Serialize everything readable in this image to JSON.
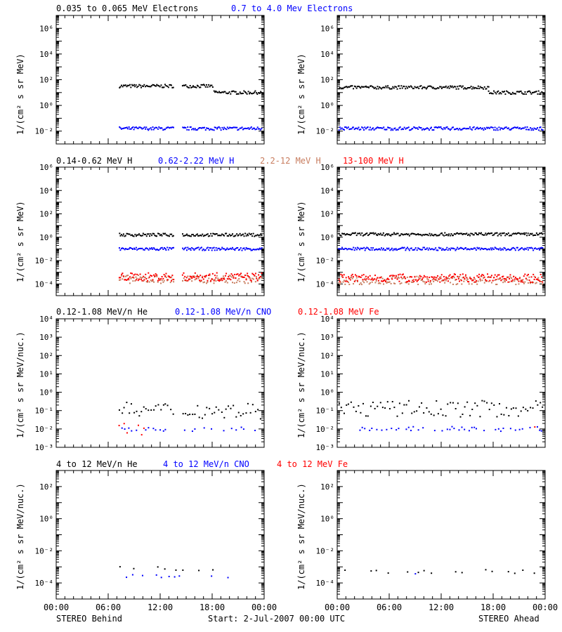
{
  "colors": {
    "black": "#000000",
    "blue": "#0000ff",
    "salmon": "#c87d5f",
    "red": "#ff0000"
  },
  "time_axis": {
    "range_hours": [
      0,
      24
    ],
    "ticks": [
      0,
      6,
      12,
      18,
      24
    ],
    "tick_labels": [
      "00:00",
      "06:00",
      "12:00",
      "18:00",
      "00:00"
    ]
  },
  "rows": [
    {
      "legend": [
        {
          "text": "0.035 to 0.065 MeV Electrons",
          "color": "black"
        },
        {
          "text": "0.7 to 4.0 Mev Electrons",
          "color": "blue"
        }
      ],
      "ylabel": "1/(cm² s sr MeV)",
      "ytick_labels": [
        {
          "text": "10⁶",
          "exp": 6
        },
        {
          "text": "10⁴",
          "exp": 4
        },
        {
          "text": "10²",
          "exp": 2
        },
        {
          "text": "10⁰",
          "exp": 0
        },
        {
          "text": "10⁻²",
          "exp": -2
        }
      ]
    },
    {
      "legend": [
        {
          "text": "0.14-0.62 MeV H",
          "color": "black"
        },
        {
          "text": "0.62-2.22 MeV H",
          "color": "blue"
        },
        {
          "text": "2.2-12 MeV H",
          "color": "salmon"
        },
        {
          "text": "13-100 MeV H",
          "color": "red"
        }
      ],
      "ylabel": "1/(cm² s sr MeV)",
      "ytick_labels": [
        {
          "text": "10⁶",
          "exp": 6
        },
        {
          "text": "10⁴",
          "exp": 4
        },
        {
          "text": "10²",
          "exp": 2
        },
        {
          "text": "10⁰",
          "exp": 0
        },
        {
          "text": "10⁻²",
          "exp": -2
        },
        {
          "text": "10⁻⁴",
          "exp": -4
        }
      ]
    },
    {
      "legend": [
        {
          "text": "0.12-1.08 MeV/n He",
          "color": "black"
        },
        {
          "text": "0.12-1.08 MeV/n CNO",
          "color": "blue"
        },
        {
          "text": "0.12-1.08 MeV Fe",
          "color": "red"
        }
      ],
      "ylabel": "1/(cm² s sr MeV/nuc.)",
      "ytick_labels": [
        {
          "text": "10⁴",
          "exp": 4
        },
        {
          "text": "10³",
          "exp": 3
        },
        {
          "text": "10²",
          "exp": 2
        },
        {
          "text": "10¹",
          "exp": 1
        },
        {
          "text": "10⁰",
          "exp": 0
        },
        {
          "text": "10⁻¹",
          "exp": -1
        },
        {
          "text": "10⁻²",
          "exp": -2
        },
        {
          "text": "10⁻³",
          "exp": -3
        }
      ]
    },
    {
      "legend": [
        {
          "text": "4 to 12 MeV/n He",
          "color": "black"
        },
        {
          "text": "4 to 12 MeV/n CNO",
          "color": "blue"
        },
        {
          "text": "4 to 12 MeV Fe",
          "color": "red"
        }
      ],
      "ylabel": "1/(cm² s sr MeV/nuc.)",
      "ytick_labels": [
        {
          "text": "10²",
          "exp": 2
        },
        {
          "text": "10⁰",
          "exp": 0
        },
        {
          "text": "10⁻²",
          "exp": -2
        },
        {
          "text": "10⁻⁴",
          "exp": -4
        }
      ]
    }
  ],
  "footer": {
    "left": "STEREO Behind",
    "center": "Start:  2-Jul-2007 00:00 UTC",
    "right": "STEREO Ahead"
  },
  "chart_data": [
    {
      "type": "scatter",
      "spacecraft": "STEREO Behind",
      "row": 0,
      "y_scale": "log",
      "ylim": [
        0.001,
        10000000.0
      ],
      "x_unit": "hours",
      "series": [
        {
          "name": "0.035 to 0.065 MeV Electrons",
          "color": "black",
          "segments": [
            {
              "t0": 7.3,
              "t1": 13.6,
              "log10": 1.5
            },
            {
              "t0": 14.6,
              "t1": 18.2,
              "log10": 1.5
            },
            {
              "t0": 18.2,
              "t1": 23.8,
              "log10": 1.0
            }
          ]
        },
        {
          "name": "0.7 to 4.0 Mev Electrons",
          "color": "blue",
          "segments": [
            {
              "t0": 7.3,
              "t1": 13.6,
              "log10": -1.8
            },
            {
              "t0": 14.6,
              "t1": 23.8,
              "log10": -1.8
            }
          ]
        }
      ]
    },
    {
      "type": "scatter",
      "spacecraft": "STEREO Ahead",
      "row": 0,
      "y_scale": "log",
      "ylim": [
        0.001,
        10000000.0
      ],
      "x_unit": "hours",
      "series": [
        {
          "name": "0.035 to 0.065 MeV Electrons",
          "color": "black",
          "segments": [
            {
              "t0": 0.2,
              "t1": 17.5,
              "log10": 1.4
            },
            {
              "t0": 17.5,
              "t1": 23.8,
              "log10": 1.0
            }
          ]
        },
        {
          "name": "0.7 to 4.0 Mev Electrons",
          "color": "blue",
          "segments": [
            {
              "t0": 0.2,
              "t1": 23.8,
              "log10": -1.8
            }
          ]
        }
      ]
    },
    {
      "type": "scatter",
      "spacecraft": "STEREO Behind",
      "row": 1,
      "y_scale": "log",
      "ylim": [
        1e-05,
        1000000.0
      ],
      "x_unit": "hours",
      "series": [
        {
          "name": "0.14-0.62 MeV H",
          "color": "black",
          "segments": [
            {
              "t0": 7.3,
              "t1": 13.6,
              "log10": 0.2
            },
            {
              "t0": 14.6,
              "t1": 23.8,
              "log10": 0.2
            }
          ]
        },
        {
          "name": "0.62-2.22 MeV H",
          "color": "blue",
          "segments": [
            {
              "t0": 7.3,
              "t1": 13.6,
              "log10": -1.0
            },
            {
              "t0": 14.6,
              "t1": 23.8,
              "log10": -1.0
            }
          ]
        },
        {
          "name": "2.2-12 MeV H",
          "color": "salmon",
          "segments": [
            {
              "t0": 7.3,
              "t1": 13.6,
              "log10": -3.6
            },
            {
              "t0": 14.6,
              "t1": 23.8,
              "log10": -3.6
            }
          ]
        },
        {
          "name": "13-100 MeV H",
          "color": "red",
          "segments": [
            {
              "t0": 7.3,
              "t1": 13.6,
              "log10": -3.4
            },
            {
              "t0": 14.6,
              "t1": 23.8,
              "log10": -3.4
            }
          ]
        }
      ]
    },
    {
      "type": "scatter",
      "spacecraft": "STEREO Ahead",
      "row": 1,
      "y_scale": "log",
      "ylim": [
        1e-05,
        1000000.0
      ],
      "x_unit": "hours",
      "series": [
        {
          "name": "0.14-0.62 MeV H",
          "color": "black",
          "segments": [
            {
              "t0": 0.2,
              "t1": 23.8,
              "log10": 0.25
            }
          ]
        },
        {
          "name": "0.62-2.22 MeV H",
          "color": "blue",
          "segments": [
            {
              "t0": 0.2,
              "t1": 23.8,
              "log10": -1.0
            }
          ]
        },
        {
          "name": "2.2-12 MeV H",
          "color": "salmon",
          "segments": [
            {
              "t0": 0.2,
              "t1": 23.8,
              "log10": -3.7
            }
          ]
        },
        {
          "name": "13-100 MeV H",
          "color": "red",
          "segments": [
            {
              "t0": 0.2,
              "t1": 23.8,
              "log10": -3.5
            }
          ]
        }
      ]
    },
    {
      "type": "scatter",
      "spacecraft": "STEREO Behind",
      "row": 2,
      "y_scale": "log",
      "ylim": [
        0.001,
        10000.0
      ],
      "x_unit": "hours",
      "series": [
        {
          "name": "0.12-1.08 MeV/n He",
          "color": "black",
          "segments": [
            {
              "t0": 7.3,
              "t1": 13.6,
              "log10": -1.0
            },
            {
              "t0": 14.6,
              "t1": 23.8,
              "log10": -1.0
            }
          ]
        },
        {
          "name": "0.12-1.08 MeV/n CNO",
          "color": "blue",
          "segments": [
            {
              "t0": 7.3,
              "t1": 13.6,
              "log10": -2.0
            },
            {
              "t0": 14.6,
              "t1": 23.8,
              "log10": -2.0
            }
          ]
        },
        {
          "name": "0.12-1.08 MeV Fe",
          "color": "red",
          "segments": [
            {
              "t0": 7.3,
              "t1": 10.5,
              "log10": -2.0
            }
          ]
        }
      ]
    },
    {
      "type": "scatter",
      "spacecraft": "STEREO Ahead",
      "row": 2,
      "y_scale": "log",
      "ylim": [
        0.001,
        10000.0
      ],
      "x_unit": "hours",
      "series": [
        {
          "name": "0.12-1.08 MeV/n He",
          "color": "black",
          "segments": [
            {
              "t0": 0.2,
              "t1": 23.8,
              "log10": -0.9
            }
          ]
        },
        {
          "name": "0.12-1.08 MeV/n CNO",
          "color": "blue",
          "segments": [
            {
              "t0": 1.5,
              "t1": 23.8,
              "log10": -2.0
            }
          ]
        },
        {
          "name": "0.12-1.08 MeV Fe",
          "color": "red",
          "segments": [
            {
              "t0": 22.5,
              "t1": 23.8,
              "log10": -1.8
            }
          ]
        }
      ]
    },
    {
      "type": "scatter",
      "spacecraft": "STEREO Behind",
      "row": 3,
      "y_scale": "log",
      "ylim": [
        1e-05,
        1000.0
      ],
      "x_unit": "hours",
      "series": [
        {
          "name": "4 to 12 MeV/n He",
          "color": "black",
          "segments": [
            {
              "t0": 7.5,
              "t1": 18.5,
              "log10": -3.1
            }
          ]
        },
        {
          "name": "4 to 12 MeV/n CNO",
          "color": "blue",
          "segments": [
            {
              "t0": 8.0,
              "t1": 20.5,
              "log10": -3.6
            }
          ]
        }
      ]
    },
    {
      "type": "scatter",
      "spacecraft": "STEREO Ahead",
      "row": 3,
      "y_scale": "log",
      "ylim": [
        1e-05,
        1000.0
      ],
      "x_unit": "hours",
      "series": [
        {
          "name": "4 to 12 MeV/n He",
          "color": "black",
          "segments": [
            {
              "t0": 1.0,
              "t1": 23.8,
              "log10": -3.3
            }
          ]
        },
        {
          "name": "4 to 12 MeV/n CNO",
          "color": "blue",
          "segments": [
            {
              "t0": 9.0,
              "t1": 10.0,
              "log10": -3.5
            }
          ]
        }
      ]
    }
  ]
}
